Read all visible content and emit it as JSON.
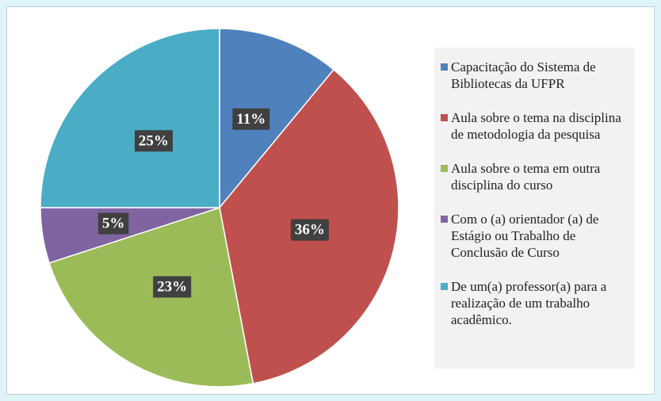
{
  "chart_data": {
    "type": "pie",
    "categories": [
      "Capacitação do Sistema de Bibliotecas da UFPR",
      "Aula sobre o tema na disciplina de metodologia da pesquisa",
      "Aula sobre o tema em outra disciplina do curso",
      "Com o (a) orientador (a) de Estágio ou Trabalho de Conclusão de Curso",
      "De um(a) professor(a) para a realização de um trabalho acadêmico."
    ],
    "values": [
      11,
      36,
      23,
      5,
      25
    ],
    "value_labels": [
      "11%",
      "36%",
      "23%",
      "5%",
      "25%"
    ],
    "colors": [
      "#4f81bd",
      "#c0504d",
      "#9bbb59",
      "#8064a2",
      "#4bacc6"
    ],
    "legend": "right"
  }
}
